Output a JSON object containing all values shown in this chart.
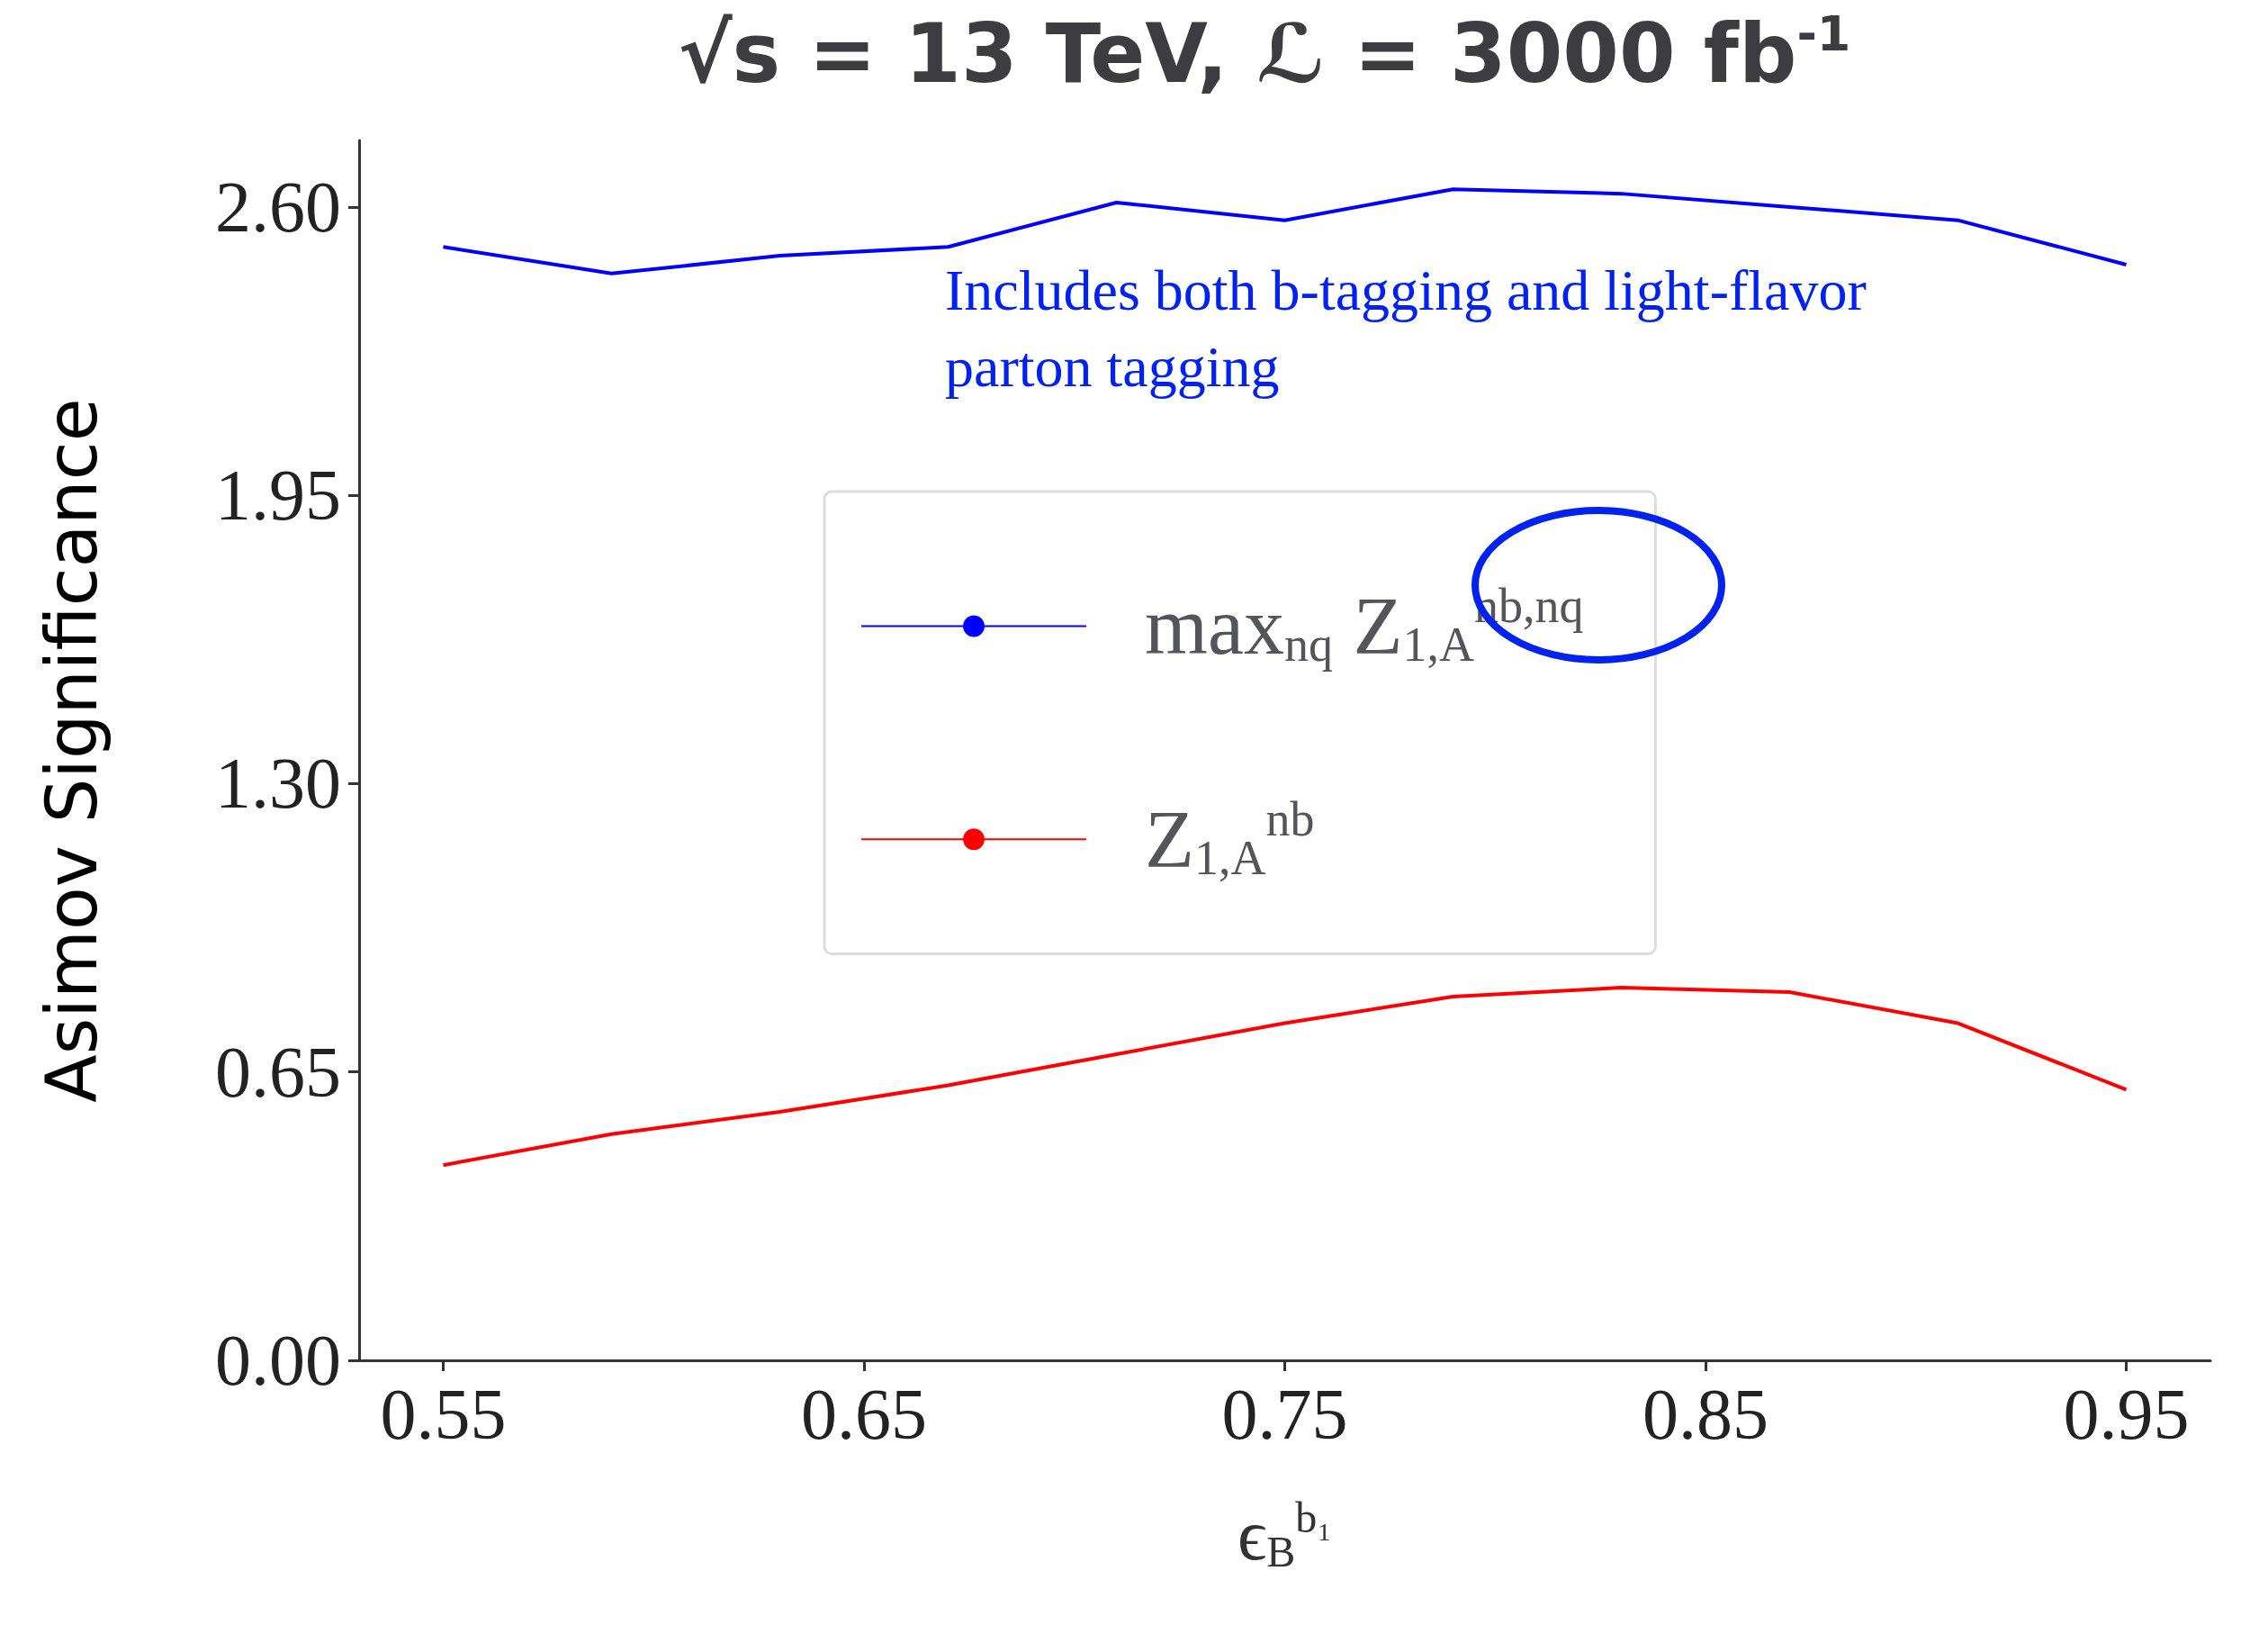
{
  "chart_data": {
    "type": "line",
    "title": "√s = 13 TeV, ℒ = 3000 fb$^{-1}$",
    "xlabel": "ϵ$_{B}$$^{b₁}$",
    "ylabel": "Asimov Significance",
    "annotations": [
      "Includes both b-tagging and light-flavor parton tagging"
    ],
    "x": [
      0.55,
      0.59,
      0.63,
      0.67,
      0.71,
      0.75,
      0.79,
      0.83,
      0.87,
      0.91,
      0.95
    ],
    "series": [
      {
        "name": "max$_{nq}$ Z$_{1,A}$$^{nb,nq}$",
        "color": "#0000ff",
        "values": [
          2.51,
          2.45,
          2.49,
          2.51,
          2.61,
          2.57,
          2.64,
          2.63,
          2.6,
          2.57,
          2.47
        ]
      },
      {
        "name": "Z$_{1,A}$$^{nb}$",
        "color": "#ff0000",
        "values": [
          0.44,
          0.51,
          0.56,
          0.62,
          0.69,
          0.76,
          0.82,
          0.84,
          0.83,
          0.76,
          0.61
        ]
      }
    ],
    "xlim": [
      0.53,
      0.97
    ],
    "ylim": [
      0,
      2.75
    ],
    "xticks": [
      0.55,
      0.65,
      0.75,
      0.85,
      0.95
    ],
    "yticks": [
      {
        "value": 0,
        "label": "0.00"
      },
      {
        "value": 0.65,
        "label": "0.65"
      },
      {
        "value": 1.3,
        "label": "1.30"
      },
      {
        "value": 1.95,
        "label": "1.95"
      },
      {
        "value": 2.6,
        "label": "2.60"
      }
    ],
    "grid": false,
    "legend": "center",
    "marker": "none",
    "line_style": "solid"
  }
}
